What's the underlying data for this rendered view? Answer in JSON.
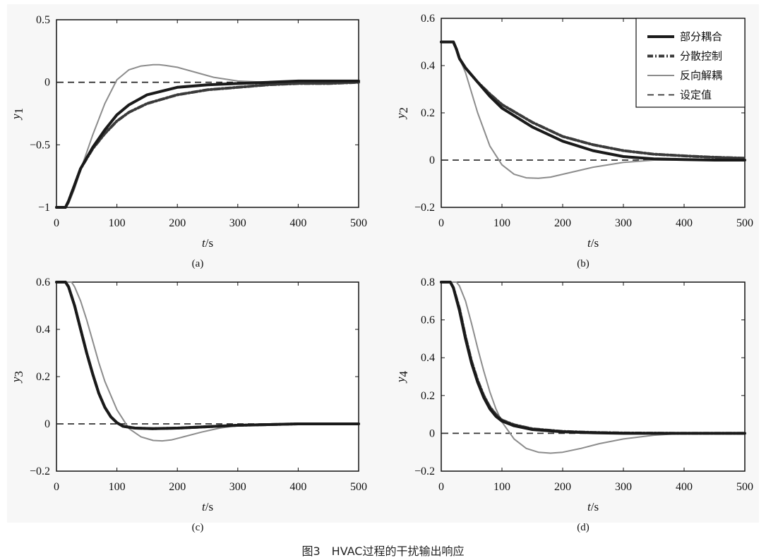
{
  "caption": "图3　HVAC过程的干扰输出响应",
  "colors": {
    "background": "#f7f7f7",
    "partial": "#1a1a1a",
    "decentral": "#3a3a3a",
    "inverse": "#8c8c8c",
    "setpoint": "#333333"
  },
  "legend": {
    "placement": "top-right of panel (b)",
    "entries": [
      {
        "key": "partial",
        "label": "部分耦合"
      },
      {
        "key": "decentral",
        "label": "分散控制"
      },
      {
        "key": "inverse",
        "label": "反向解耦"
      },
      {
        "key": "setpoint",
        "label": "设定值"
      }
    ]
  },
  "chart_data": [
    {
      "type": "line",
      "sublabel": "(a)",
      "xlabel": "t",
      "xunit": "/s",
      "ylabel": "y",
      "ysub": "1",
      "xlim": [
        0,
        500
      ],
      "ylim": [
        -1,
        0.5
      ],
      "xticks": [
        0,
        100,
        200,
        300,
        400,
        500
      ],
      "yticks": [
        -1,
        -0.5,
        0,
        0.5
      ],
      "yticklabels": [
        "−1",
        "−0.5",
        "0",
        "0.5"
      ],
      "setpoint": 0,
      "series": [
        {
          "name": "部分耦合",
          "key": "partial",
          "x": [
            0,
            15,
            20,
            30,
            40,
            60,
            80,
            100,
            120,
            150,
            200,
            250,
            300,
            350,
            400,
            450,
            500
          ],
          "y": [
            -1,
            -1,
            -0.95,
            -0.82,
            -0.69,
            -0.52,
            -0.38,
            -0.26,
            -0.18,
            -0.1,
            -0.04,
            -0.02,
            -0.01,
            0,
            0.01,
            0.01,
            0.01
          ]
        },
        {
          "name": "分散控制",
          "key": "decentral",
          "x": [
            0,
            15,
            20,
            30,
            40,
            60,
            80,
            100,
            120,
            150,
            200,
            250,
            300,
            350,
            400,
            450,
            500
          ],
          "y": [
            -1,
            -1,
            -0.95,
            -0.82,
            -0.69,
            -0.53,
            -0.41,
            -0.31,
            -0.24,
            -0.17,
            -0.1,
            -0.06,
            -0.04,
            -0.02,
            -0.01,
            -0.01,
            0
          ]
        },
        {
          "name": "反向解耦",
          "key": "inverse",
          "x": [
            0,
            15,
            20,
            30,
            40,
            60,
            80,
            100,
            120,
            140,
            160,
            170,
            180,
            200,
            230,
            260,
            300,
            350,
            400,
            450,
            500
          ],
          "y": [
            -1,
            -1,
            -0.97,
            -0.85,
            -0.7,
            -0.42,
            -0.17,
            0.02,
            0.1,
            0.13,
            0.14,
            0.14,
            0.135,
            0.12,
            0.08,
            0.04,
            0.01,
            0,
            0,
            0,
            0
          ]
        }
      ]
    },
    {
      "type": "line",
      "sublabel": "(b)",
      "xlabel": "t",
      "xunit": "/s",
      "ylabel": "y",
      "ysub": "2",
      "xlim": [
        0,
        500
      ],
      "ylim": [
        -0.2,
        0.6
      ],
      "xticks": [
        0,
        100,
        200,
        300,
        400,
        500
      ],
      "yticks": [
        -0.2,
        0,
        0.2,
        0.4,
        0.6
      ],
      "yticklabels": [
        "−0.2",
        "0",
        "0.2",
        "0.4",
        "0.6"
      ],
      "setpoint": 0,
      "series": [
        {
          "name": "部分耦合",
          "key": "partial",
          "x": [
            0,
            20,
            25,
            30,
            40,
            60,
            80,
            100,
            150,
            200,
            250,
            300,
            350,
            400,
            450,
            500
          ],
          "y": [
            0.5,
            0.5,
            0.47,
            0.43,
            0.39,
            0.33,
            0.27,
            0.22,
            0.14,
            0.08,
            0.04,
            0.015,
            0.005,
            0.002,
            0,
            0
          ]
        },
        {
          "name": "分散控制",
          "key": "decentral",
          "x": [
            0,
            20,
            25,
            30,
            40,
            60,
            80,
            100,
            150,
            200,
            250,
            300,
            350,
            400,
            450,
            500
          ],
          "y": [
            0.5,
            0.5,
            0.47,
            0.43,
            0.39,
            0.33,
            0.28,
            0.235,
            0.16,
            0.1,
            0.065,
            0.04,
            0.025,
            0.018,
            0.012,
            0.008
          ]
        },
        {
          "name": "反向解耦",
          "key": "inverse",
          "x": [
            0,
            20,
            30,
            40,
            60,
            80,
            100,
            120,
            140,
            160,
            180,
            200,
            250,
            300,
            350,
            400,
            450,
            500
          ],
          "y": [
            0.5,
            0.5,
            0.43,
            0.37,
            0.2,
            0.06,
            -0.02,
            -0.06,
            -0.075,
            -0.077,
            -0.072,
            -0.06,
            -0.03,
            -0.01,
            0,
            0,
            0,
            0
          ]
        }
      ]
    },
    {
      "type": "line",
      "sublabel": "(c)",
      "xlabel": "t",
      "xunit": "/s",
      "ylabel": "y",
      "ysub": "3",
      "xlim": [
        0,
        500
      ],
      "ylim": [
        -0.2,
        0.6
      ],
      "xticks": [
        0,
        100,
        200,
        300,
        400,
        500
      ],
      "yticks": [
        -0.2,
        0,
        0.2,
        0.4,
        0.6
      ],
      "yticklabels": [
        "−0.2",
        "0",
        "0.2",
        "0.4",
        "0.6"
      ],
      "setpoint": 0,
      "series": [
        {
          "name": "部分耦合",
          "key": "partial",
          "x": [
            0,
            15,
            20,
            30,
            40,
            50,
            60,
            70,
            80,
            90,
            100,
            110,
            130,
            160,
            200,
            250,
            300,
            350,
            400,
            450,
            500
          ],
          "y": [
            0.6,
            0.6,
            0.58,
            0.5,
            0.4,
            0.3,
            0.21,
            0.13,
            0.07,
            0.03,
            0.005,
            -0.01,
            -0.018,
            -0.02,
            -0.018,
            -0.012,
            -0.006,
            -0.003,
            0,
            0,
            0
          ]
        },
        {
          "name": "分散控制",
          "key": "decentral",
          "x": [
            0,
            15,
            20,
            30,
            40,
            50,
            60,
            70,
            80,
            90,
            100,
            110,
            130,
            160,
            200,
            250,
            300,
            350,
            400,
            450,
            500
          ],
          "y": [
            0.6,
            0.6,
            0.58,
            0.5,
            0.4,
            0.3,
            0.21,
            0.13,
            0.07,
            0.03,
            0.005,
            -0.01,
            -0.018,
            -0.02,
            -0.018,
            -0.012,
            -0.006,
            -0.003,
            0,
            0,
            0
          ]
        },
        {
          "name": "反向解耦",
          "key": "inverse",
          "x": [
            0,
            25,
            30,
            40,
            50,
            60,
            70,
            80,
            100,
            120,
            140,
            160,
            175,
            190,
            210,
            240,
            270,
            300,
            350,
            400,
            450,
            500
          ],
          "y": [
            0.6,
            0.6,
            0.58,
            0.52,
            0.44,
            0.35,
            0.26,
            0.18,
            0.06,
            -0.02,
            -0.055,
            -0.07,
            -0.072,
            -0.068,
            -0.055,
            -0.035,
            -0.018,
            -0.007,
            0,
            0,
            0,
            0
          ]
        }
      ]
    },
    {
      "type": "line",
      "sublabel": "(d)",
      "xlabel": "t",
      "xunit": "/s",
      "ylabel": "y",
      "ysub": "4",
      "xlim": [
        0,
        500
      ],
      "ylim": [
        -0.2,
        0.8
      ],
      "xticks": [
        0,
        100,
        200,
        300,
        400,
        500
      ],
      "yticks": [
        -0.2,
        0,
        0.2,
        0.4,
        0.6,
        0.8
      ],
      "yticklabels": [
        "−0.2",
        "0",
        "0.2",
        "0.4",
        "0.6",
        "0.8"
      ],
      "setpoint": 0,
      "series": [
        {
          "name": "部分耦合",
          "key": "partial",
          "x": [
            0,
            15,
            20,
            30,
            40,
            50,
            60,
            70,
            80,
            90,
            100,
            120,
            150,
            200,
            250,
            300,
            400,
            500
          ],
          "y": [
            0.8,
            0.8,
            0.77,
            0.65,
            0.5,
            0.37,
            0.27,
            0.19,
            0.13,
            0.09,
            0.065,
            0.04,
            0.02,
            0.008,
            0.003,
            0,
            0,
            0
          ]
        },
        {
          "name": "分散控制",
          "key": "decentral",
          "x": [
            0,
            15,
            20,
            30,
            40,
            50,
            60,
            70,
            80,
            90,
            100,
            120,
            150,
            200,
            250,
            300,
            400,
            500
          ],
          "y": [
            0.8,
            0.8,
            0.77,
            0.66,
            0.51,
            0.38,
            0.28,
            0.2,
            0.14,
            0.1,
            0.07,
            0.045,
            0.024,
            0.01,
            0.005,
            0.002,
            0,
            0
          ]
        },
        {
          "name": "反向解耦",
          "key": "inverse",
          "x": [
            0,
            25,
            30,
            40,
            50,
            60,
            70,
            80,
            90,
            100,
            120,
            140,
            160,
            180,
            200,
            230,
            260,
            300,
            350,
            400,
            450,
            500
          ],
          "y": [
            0.8,
            0.8,
            0.78,
            0.7,
            0.58,
            0.45,
            0.33,
            0.22,
            0.13,
            0.06,
            -0.03,
            -0.08,
            -0.1,
            -0.105,
            -0.1,
            -0.08,
            -0.055,
            -0.03,
            -0.01,
            0,
            0,
            0
          ]
        }
      ]
    }
  ]
}
